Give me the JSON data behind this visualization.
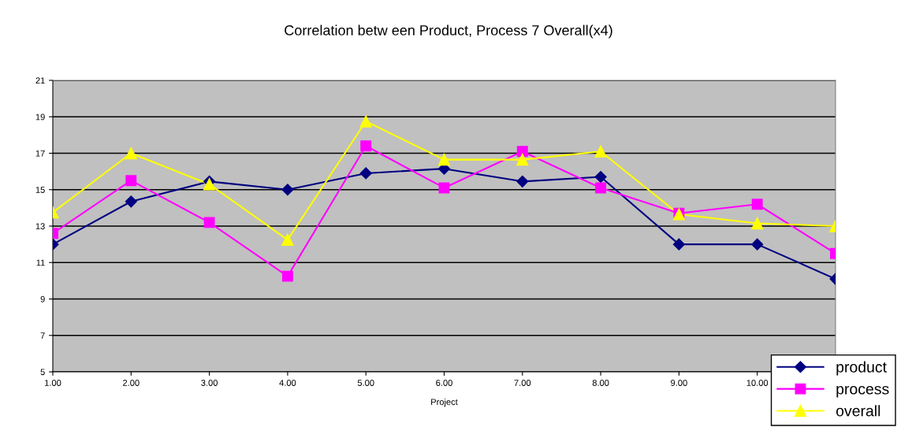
{
  "chart_data": {
    "type": "line",
    "title": "Correlation betw een Product, Process 7 Overall(x4)",
    "xlabel": "Project",
    "categories": [
      "1.00",
      "2.00",
      "3.00",
      "4.00",
      "5.00",
      "6.00",
      "7.00",
      "8.00",
      "9.00",
      "10.00",
      null
    ],
    "series": [
      {
        "name": "product",
        "color": "#000080",
        "marker": "diamond",
        "values": [
          12.0,
          14.35,
          15.45,
          15.0,
          15.9,
          16.15,
          15.45,
          15.7,
          12.0,
          12.0,
          10.1
        ]
      },
      {
        "name": "process",
        "color": "#ff00ff",
        "marker": "square",
        "values": [
          12.6,
          15.5,
          13.2,
          10.25,
          17.4,
          15.1,
          17.1,
          15.1,
          13.7,
          14.2,
          11.5
        ]
      },
      {
        "name": "overall",
        "color": "#ffff00",
        "marker": "triangle",
        "values": [
          13.75,
          17.0,
          15.3,
          12.25,
          18.75,
          16.65,
          16.65,
          17.1,
          13.65,
          13.15,
          13.0
        ]
      }
    ],
    "ylim": [
      5,
      21
    ],
    "yticks": [
      5,
      7,
      9,
      11,
      13,
      15,
      17,
      19,
      21
    ],
    "grid": "y",
    "legend": "bottom right"
  }
}
